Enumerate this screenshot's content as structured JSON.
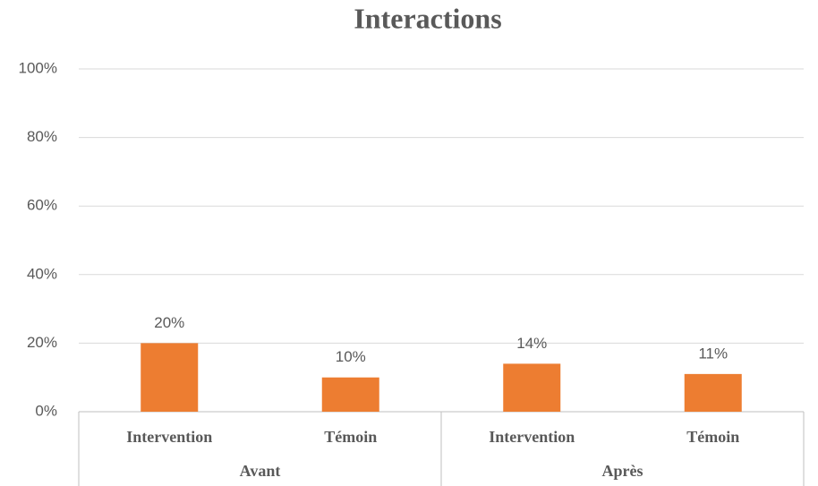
{
  "chart_data": {
    "type": "bar",
    "title": "Interactions",
    "categories": [
      "Intervention",
      "Témoin",
      "Intervention",
      "Témoin"
    ],
    "groups": [
      "Avant",
      "Après"
    ],
    "values": [
      20,
      10,
      14,
      11
    ],
    "value_labels": [
      "20%",
      "10%",
      "14%",
      "11%"
    ],
    "color": "#ed7d31",
    "ylim": [
      0,
      100
    ],
    "yticks": [
      {
        "value": 0,
        "label": "0%"
      },
      {
        "value": 20,
        "label": "20%"
      },
      {
        "value": 40,
        "label": "40%"
      },
      {
        "value": 60,
        "label": "60%"
      },
      {
        "value": 80,
        "label": "80%"
      },
      {
        "value": 100,
        "label": "100%"
      }
    ],
    "grid": true
  }
}
